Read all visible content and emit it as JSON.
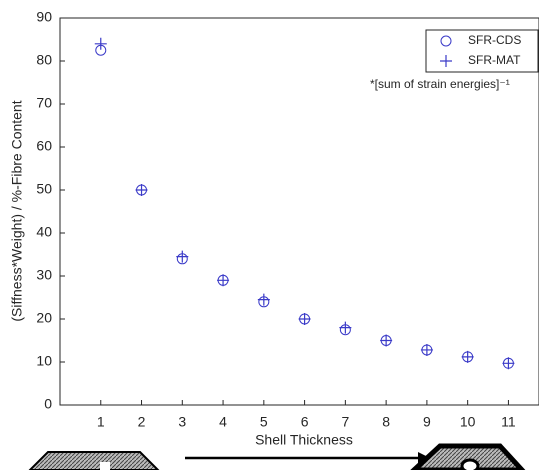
{
  "chart_data": {
    "type": "scatter",
    "ylabel": "(Siffness*Weight) / %-Fibre Content",
    "xlabel": "Shell Thickness",
    "annotation": "*[sum of strain energies]⁻¹",
    "x": [
      1,
      2,
      3,
      4,
      5,
      6,
      7,
      8,
      9,
      10,
      11
    ],
    "series": [
      {
        "name": "SFR-CDS",
        "color": "#3a3ac8",
        "marker": "circle",
        "values": [
          82.5,
          50,
          34,
          29,
          24,
          20,
          17.5,
          15,
          12.8,
          11.2,
          9.7
        ]
      },
      {
        "name": "SFR-MAT",
        "color": "#3a3ac8",
        "marker": "plus",
        "values": [
          84,
          50,
          34.5,
          29,
          24.5,
          20,
          18,
          15,
          12.8,
          11.2,
          9.7
        ]
      }
    ],
    "xlim": [
      0,
      11.75
    ],
    "xticks": [
      1,
      2,
      3,
      4,
      5,
      6,
      7,
      8,
      9,
      10,
      11
    ],
    "ylim": [
      0,
      90
    ],
    "yticks": [
      0,
      10,
      20,
      30,
      40,
      50,
      60,
      70,
      80,
      90
    ],
    "legend": "upper right"
  }
}
